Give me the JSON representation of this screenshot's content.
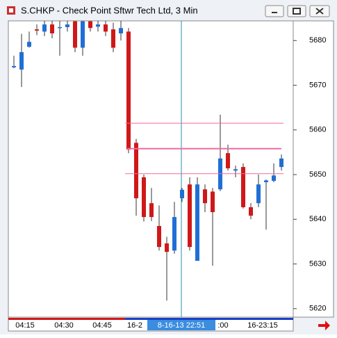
{
  "window": {
    "title": "S.CHKP - Check Point Sftwr Tech Ltd, 3 Min"
  },
  "chart_data": {
    "type": "candlestick",
    "open": [
      5674.0,
      5673.5,
      5678.6,
      5682.5,
      5682.0,
      5683.6,
      5682.8,
      5683.0,
      5684.3,
      5678.4,
      5684.3,
      5683.1,
      5683.6,
      5682.5,
      5681.6,
      5682.0,
      5657.1,
      5649.4,
      5643.6,
      5638.5,
      5634.6,
      5633.0,
      5644.7,
      5647.8,
      5630.7,
      5646.7,
      5646.2,
      5646.7,
      5654.8,
      5650.9,
      5651.7,
      5642.7,
      5643.6,
      5648.3,
      5648.6,
      5651.7
    ],
    "high": [
      5676.6,
      5681.5,
      5682.0,
      5683.6,
      5684.4,
      5684.4,
      5684.4,
      5684.4,
      5684.4,
      5684.4,
      5684.4,
      5684.4,
      5684.4,
      5684.0,
      5684.4,
      5682.8,
      5658.0,
      5650.0,
      5647.0,
      5643.1,
      5636.1,
      5643.9,
      5647.0,
      5649.4,
      5649.4,
      5647.8,
      5647.0,
      5663.4,
      5656.7,
      5652.0,
      5652.5,
      5643.6,
      5650.0,
      5648.9,
      5652.5,
      5654.5
    ],
    "low": [
      5673.8,
      5669.6,
      5678.4,
      5681.2,
      5681.0,
      5680.5,
      5676.6,
      5682.0,
      5677.4,
      5676.6,
      5682.0,
      5682.0,
      5681.0,
      5677.4,
      5680.0,
      5654.8,
      5640.8,
      5639.5,
      5639.6,
      5633.0,
      5621.8,
      5632.3,
      5643.9,
      5633.0,
      5630.7,
      5641.6,
      5629.6,
      5646.3,
      5650.9,
      5649.4,
      5642.4,
      5640.0,
      5642.7,
      5637.7,
      5648.3,
      5650.9
    ],
    "close": [
      5674.3,
      5677.4,
      5679.7,
      5682.2,
      5683.6,
      5681.6,
      5683.0,
      5683.6,
      5678.4,
      5684.3,
      5682.8,
      5683.6,
      5682.0,
      5678.4,
      5682.8,
      5655.6,
      5644.7,
      5640.5,
      5640.5,
      5633.8,
      5632.7,
      5640.5,
      5646.6,
      5633.8,
      5647.8,
      5643.6,
      5641.6,
      5653.6,
      5651.4,
      5651.2,
      5642.7,
      5640.8,
      5647.8,
      5648.7,
      5649.8,
      5653.6
    ],
    "up_color": "#1f6fd6",
    "down_color": "#d01818",
    "levels": [
      5661.5,
      5655.8,
      5650.2
    ],
    "level_color": "#f06aa0",
    "ylim": [
      5618.1,
      5684.4
    ],
    "yticks": [
      5680,
      5670,
      5660,
      5650,
      5640,
      5630,
      5620
    ],
    "x_labels": [
      "04:15",
      "04:30",
      "04:45",
      "16-2",
      "8-16-13 22:51",
      ":00",
      "16-23:15"
    ]
  }
}
